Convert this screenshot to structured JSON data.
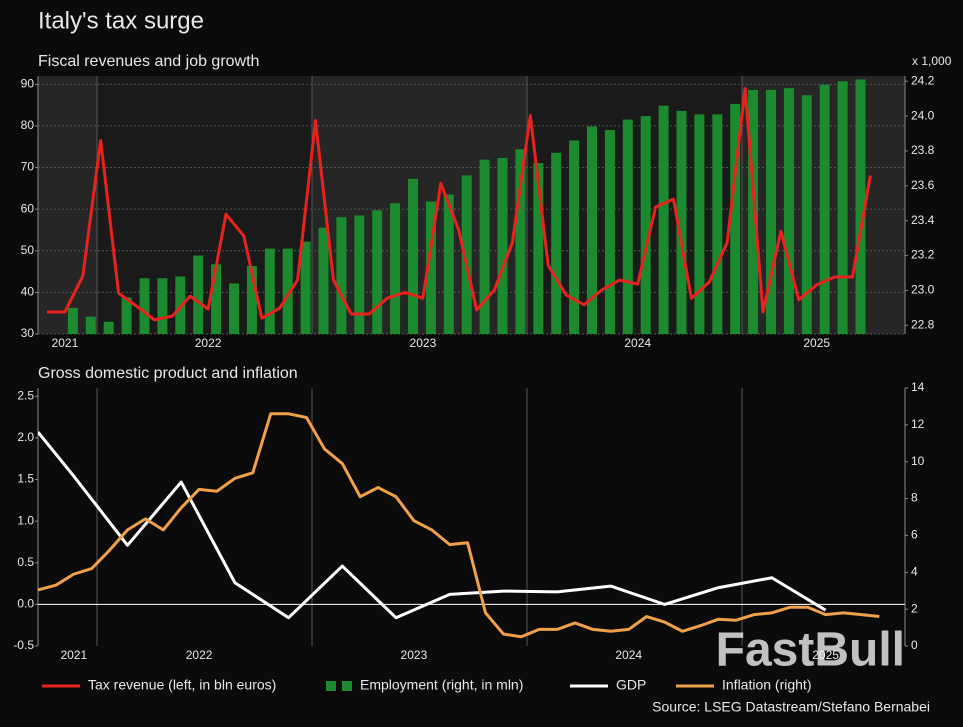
{
  "title": "Italy's tax surge",
  "source": "Source: LSEG Datastream/Stefano Bernabei",
  "watermark": "FastBull",
  "chart_data": [
    {
      "type": "bar",
      "title": "Fiscal revenues and job growth",
      "y2_label": "x 1,000",
      "grid": true,
      "categories": [
        null,
        "2021",
        null,
        null,
        null,
        null,
        null,
        null,
        null,
        "2022",
        null,
        null,
        null,
        null,
        null,
        null,
        null,
        null,
        null,
        null,
        null,
        "2023",
        null,
        null,
        null,
        null,
        null,
        null,
        null,
        null,
        null,
        null,
        null,
        "2024",
        null,
        null,
        null,
        null,
        null,
        null,
        null,
        null,
        null,
        "2025",
        null,
        null,
        null
      ],
      "ylim": [
        30,
        92
      ],
      "yticks": [
        30,
        40,
        50,
        60,
        70,
        80,
        90
      ],
      "y2lim": [
        22.75,
        24.23
      ],
      "y2ticks": [
        22.8,
        {
          "value": 23,
          "label": "23.0"
        },
        23.2,
        23.4,
        23.6,
        23.8,
        {
          "value": 24,
          "label": "24.0"
        },
        24.2
      ],
      "series": [
        {
          "name": "Tax revenue (left, in bln euros)",
          "type": "line",
          "color": "#e8231e",
          "values": [
            35.3,
            35.3,
            43.9,
            76.5,
            39.8,
            36.7,
            33.4,
            34.3,
            39.1,
            36,
            58.8,
            53.5,
            33.8,
            36.2,
            43,
            81.3,
            43,
            34.8,
            34.8,
            38.6,
            40,
            38.6,
            66.2,
            55,
            35.8,
            40.6,
            52,
            82.5,
            46.5,
            39.4,
            37,
            40.6,
            43,
            42,
            60.5,
            62.4,
            38.6,
            42.5,
            52,
            89,
            35.3,
            54.7,
            38.2,
            41.8,
            43.7,
            43.7,
            68.1
          ]
        },
        {
          "name": "Employment (right, in mln)",
          "type": "bar",
          "axis": "y2",
          "color": "#1c8a2e",
          "values": [
            22.75,
            22.9,
            22.85,
            22.82,
            22.96,
            23.07,
            23.07,
            23.08,
            23.2,
            23.15,
            23.04,
            23.14,
            23.24,
            23.24,
            23.28,
            23.36,
            23.42,
            23.43,
            23.46,
            23.5,
            23.64,
            23.51,
            23.55,
            23.66,
            23.75,
            23.76,
            23.81,
            23.73,
            23.79,
            23.86,
            23.94,
            23.92,
            23.98,
            24,
            24.06,
            24.03,
            24.01,
            24.01,
            24.07,
            24.15,
            24.15,
            24.16,
            24.12,
            24.18,
            24.2,
            24.21,
            null
          ]
        }
      ]
    },
    {
      "type": "line",
      "title": "Gross domestic product and inflation",
      "zero_line": true,
      "categories": [
        null,
        null,
        "2021",
        null,
        null,
        null,
        null,
        null,
        null,
        "2022",
        null,
        null,
        null,
        null,
        null,
        null,
        null,
        null,
        null,
        null,
        null,
        "2023",
        null,
        null,
        null,
        null,
        null,
        null,
        null,
        null,
        null,
        null,
        null,
        "2024",
        null,
        null,
        null,
        null,
        null,
        null,
        null,
        null,
        null,
        null,
        "2025",
        null,
        null,
        null
      ],
      "ylim": [
        -0.5,
        2.6
      ],
      "yticks": [
        -0.5,
        {
          "value": 0,
          "label": "0.0"
        },
        0.5,
        {
          "value": 1,
          "label": "1.0"
        },
        1.5,
        {
          "value": 2,
          "label": "2.0"
        },
        2.5
      ],
      "y2lim": [
        0,
        14
      ],
      "y2ticks": [
        0,
        2,
        4,
        6,
        8,
        10,
        12,
        14
      ],
      "series": [
        {
          "name": "GDP",
          "color": "#ffffff",
          "values": [
            2.07,
            null,
            1.54,
            null,
            null,
            0.71,
            null,
            null,
            1.47,
            null,
            null,
            0.26,
            null,
            null,
            -0.16,
            null,
            null,
            0.46,
            null,
            null,
            -0.16,
            null,
            null,
            0.12,
            null,
            null,
            0.16,
            null,
            null,
            0.15,
            null,
            null,
            0.22,
            null,
            null,
            0,
            null,
            null,
            0.2,
            null,
            null,
            0.32,
            null,
            null,
            -0.07,
            null,
            null,
            null
          ]
        },
        {
          "name": "Inflation (right)",
          "axis": "y2",
          "color": "#f0a04b",
          "values": [
            3.04,
            3.3,
            3.9,
            4.2,
            5.2,
            6.3,
            6.9,
            6.3,
            7.5,
            8.5,
            8.4,
            9.1,
            9.4,
            12.6,
            12.6,
            12.4,
            10.7,
            9.9,
            8.1,
            8.6,
            8.1,
            6.8,
            6.3,
            5.5,
            5.6,
            1.8,
            0.65,
            0.5,
            0.9,
            0.9,
            1.25,
            0.9,
            0.8,
            0.9,
            1.6,
            1.3,
            0.8,
            1.1,
            1.45,
            1.4,
            1.7,
            1.8,
            2.1,
            2.1,
            1.7,
            1.8,
            1.7,
            1.6
          ]
        }
      ]
    }
  ]
}
